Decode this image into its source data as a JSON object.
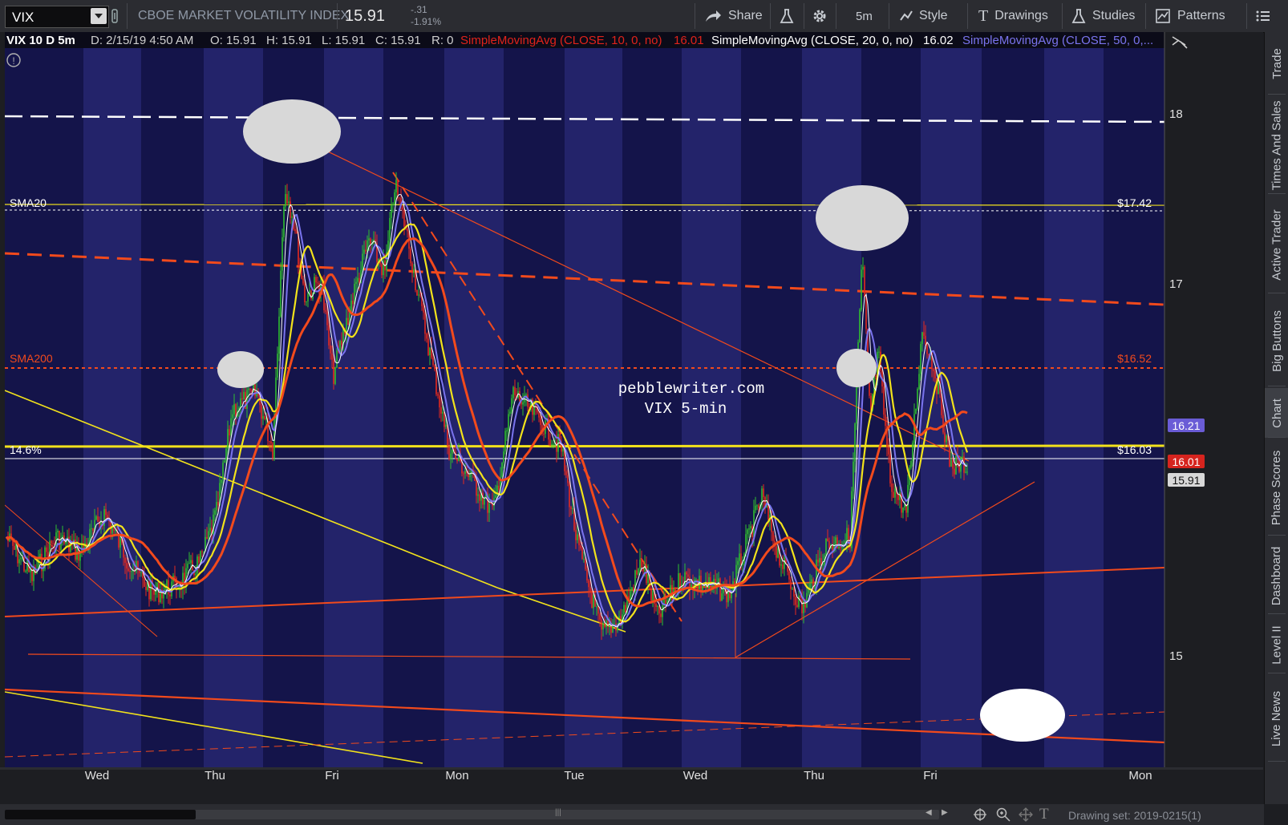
{
  "toolbar": {
    "symbol": "VIX",
    "description": "CBOE MARKET VOLATILITY INDEX",
    "last_price": "15.91",
    "net_change": "-.31",
    "pct_change": "-1.91%",
    "share_label": "Share",
    "timeframe_label": "5m",
    "style_label": "Style",
    "drawings_label": "Drawings",
    "studies_label": "Studies",
    "patterns_label": "Patterns"
  },
  "header": {
    "title": "VIX 10 D 5m",
    "date": "D: 2/15/19 4:50 AM",
    "open": "O: 15.91",
    "high": "H: 15.91",
    "low": "L: 15.91",
    "close": "C: 15.91",
    "range": "R: 0",
    "sma10_label": "SimpleMovingAvg (CLOSE, 10, 0, no)",
    "sma10_value": "16.01",
    "sma20_label": "SimpleMovingAvg (CLOSE, 20, 0, no)",
    "sma20_value": "16.02",
    "sma50_label": "SimpleMovingAvg (CLOSE, 50, 0,..."
  },
  "annotations": {
    "sma20_tag": "SMA20",
    "sma20_price": "$17.42",
    "sma200_tag": "SMA200",
    "sma200_price": "$16.52",
    "fib_tag": "14.6%",
    "fib_price": "$16.03",
    "watermark_1": "pebblewriter.com",
    "watermark_2": "VIX 5-min"
  },
  "price_axis": {
    "ticks": [
      "18",
      "17",
      "15"
    ],
    "badges": [
      {
        "text": "16.21",
        "color": "#6a5cd6"
      },
      {
        "text": "16.01",
        "color": "#d6241e"
      },
      {
        "text": "15.91",
        "color": "#d8d8d8"
      }
    ]
  },
  "time_axis": {
    "labels": [
      "Wed",
      "Thu",
      "Fri",
      "Mon",
      "Tue",
      "Wed",
      "Thu",
      "Fri",
      "Mon"
    ]
  },
  "right_tabs": [
    "Trade",
    "Times And Sales",
    "Active Trader",
    "Big Buttons",
    "Chart",
    "Phase Scores",
    "Dashboard",
    "Level II",
    "Live News"
  ],
  "bottom": {
    "drawing_set": "Drawing set: 2019-0215(1)"
  },
  "colors": {
    "chart_bg": "#14144a",
    "chart_stripe": "#23236a",
    "sma10": "#ffffff",
    "sma20": "#f2e21b",
    "sma50": "#7a74ee",
    "sma200": "#f24a1c",
    "candle_up": "#2fbf2f",
    "candle_down": "#e62a1e"
  }
}
